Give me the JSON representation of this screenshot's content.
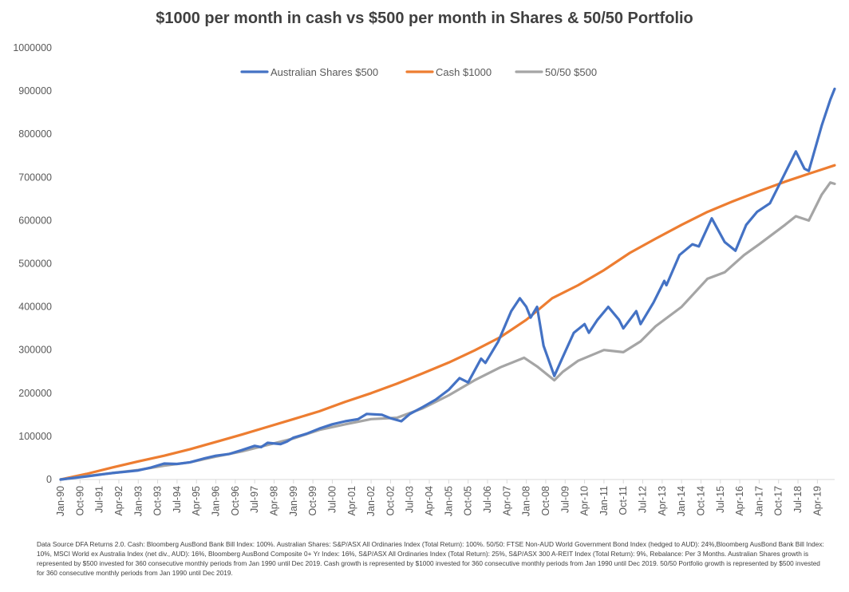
{
  "chart_data": {
    "type": "line",
    "title": "$1000 per month in cash vs $500 per month in Shares & 50/50 Portfolio",
    "xlabel": "",
    "ylabel": "",
    "ylim": [
      0,
      1000000
    ],
    "y_ticks": [
      "0",
      "100000",
      "200000",
      "300000",
      "400000",
      "500000",
      "600000",
      "700000",
      "800000",
      "900000",
      "1000000"
    ],
    "x_ticks": [
      "Jan-90",
      "Oct-90",
      "Jul-91",
      "Apr-92",
      "Jan-93",
      "Oct-93",
      "Jul-94",
      "Apr-95",
      "Jan-96",
      "Oct-96",
      "Jul-97",
      "Apr-98",
      "Jan-99",
      "Oct-99",
      "Jul-00",
      "Apr-01",
      "Jan-02",
      "Oct-02",
      "Jul-03",
      "Apr-04",
      "Jan-05",
      "Oct-05",
      "Jul-06",
      "Apr-07",
      "Jan-08",
      "Oct-08",
      "Jul-09",
      "Apr-10",
      "Jan-11",
      "Oct-11",
      "Jul-12",
      "Apr-13",
      "Jan-14",
      "Oct-14",
      "Jul-15",
      "Apr-16",
      "Jan-17",
      "Oct-17",
      "Jul-18",
      "Apr-19"
    ],
    "grid": false,
    "legend_position": "top-center",
    "series": [
      {
        "name": "Australian Shares $500",
        "color": "#4472C4",
        "points": [
          [
            "1990-01",
            0
          ],
          [
            "1990-06",
            3000
          ],
          [
            "1991-01",
            7000
          ],
          [
            "1991-07",
            11000
          ],
          [
            "1992-01",
            15000
          ],
          [
            "1992-07",
            18000
          ],
          [
            "1993-01",
            21000
          ],
          [
            "1993-07",
            28000
          ],
          [
            "1994-01",
            37000
          ],
          [
            "1994-07",
            36000
          ],
          [
            "1995-01",
            40000
          ],
          [
            "1995-07",
            48000
          ],
          [
            "1996-01",
            55000
          ],
          [
            "1996-07",
            59000
          ],
          [
            "1997-01",
            68000
          ],
          [
            "1997-07",
            78000
          ],
          [
            "1997-10",
            75000
          ],
          [
            "1998-01",
            85000
          ],
          [
            "1998-07",
            82000
          ],
          [
            "1998-10",
            88000
          ],
          [
            "1999-01",
            97000
          ],
          [
            "1999-07",
            106000
          ],
          [
            "2000-01",
            118000
          ],
          [
            "2000-07",
            128000
          ],
          [
            "2001-01",
            135000
          ],
          [
            "2001-07",
            140000
          ],
          [
            "2001-11",
            152000
          ],
          [
            "2002-06",
            150000
          ],
          [
            "2002-10",
            142000
          ],
          [
            "2003-03",
            135000
          ],
          [
            "2003-07",
            152000
          ],
          [
            "2004-01",
            168000
          ],
          [
            "2004-07",
            185000
          ],
          [
            "2005-01",
            208000
          ],
          [
            "2005-06",
            235000
          ],
          [
            "2005-10",
            225000
          ],
          [
            "2006-04",
            280000
          ],
          [
            "2006-06",
            270000
          ],
          [
            "2006-12",
            320000
          ],
          [
            "2007-06",
            390000
          ],
          [
            "2007-10",
            420000
          ],
          [
            "2008-01",
            400000
          ],
          [
            "2008-03",
            375000
          ],
          [
            "2008-06",
            400000
          ],
          [
            "2008-09",
            310000
          ],
          [
            "2009-02",
            240000
          ],
          [
            "2009-06",
            285000
          ],
          [
            "2009-11",
            340000
          ],
          [
            "2010-04",
            360000
          ],
          [
            "2010-06",
            340000
          ],
          [
            "2010-10",
            370000
          ],
          [
            "2011-03",
            400000
          ],
          [
            "2011-08",
            370000
          ],
          [
            "2011-10",
            350000
          ],
          [
            "2012-04",
            390000
          ],
          [
            "2012-06",
            360000
          ],
          [
            "2012-12",
            410000
          ],
          [
            "2013-05",
            460000
          ],
          [
            "2013-06",
            450000
          ],
          [
            "2013-12",
            520000
          ],
          [
            "2014-06",
            545000
          ],
          [
            "2014-09",
            540000
          ],
          [
            "2015-03",
            605000
          ],
          [
            "2015-09",
            550000
          ],
          [
            "2016-02",
            530000
          ],
          [
            "2016-07",
            590000
          ],
          [
            "2016-12",
            620000
          ],
          [
            "2017-06",
            640000
          ],
          [
            "2017-12",
            700000
          ],
          [
            "2018-06",
            760000
          ],
          [
            "2018-10",
            720000
          ],
          [
            "2018-12",
            715000
          ],
          [
            "2019-06",
            820000
          ],
          [
            "2019-10",
            880000
          ],
          [
            "2019-12",
            905000
          ]
        ]
      },
      {
        "name": "Cash $1000",
        "color": "#ED7D31",
        "points": [
          [
            "1990-01",
            0
          ],
          [
            "1991-01",
            13000
          ],
          [
            "1992-01",
            28000
          ],
          [
            "1993-01",
            42000
          ],
          [
            "1994-01",
            55000
          ],
          [
            "1995-01",
            70000
          ],
          [
            "1996-01",
            87000
          ],
          [
            "1997-01",
            104000
          ],
          [
            "1998-01",
            122000
          ],
          [
            "1999-01",
            140000
          ],
          [
            "2000-01",
            158000
          ],
          [
            "2001-01",
            180000
          ],
          [
            "2002-01",
            200000
          ],
          [
            "2003-01",
            222000
          ],
          [
            "2004-01",
            246000
          ],
          [
            "2005-01",
            271000
          ],
          [
            "2006-01",
            299000
          ],
          [
            "2007-01",
            330000
          ],
          [
            "2008-01",
            370000
          ],
          [
            "2009-01",
            420000
          ],
          [
            "2010-01",
            450000
          ],
          [
            "2011-01",
            485000
          ],
          [
            "2012-01",
            525000
          ],
          [
            "2013-01",
            558000
          ],
          [
            "2014-01",
            590000
          ],
          [
            "2015-01",
            620000
          ],
          [
            "2016-01",
            645000
          ],
          [
            "2017-01",
            668000
          ],
          [
            "2018-01",
            690000
          ],
          [
            "2019-01",
            710000
          ],
          [
            "2019-12",
            728000
          ]
        ]
      },
      {
        "name": "50/50 $500",
        "color": "#A5A5A5",
        "points": [
          [
            "1990-01",
            0
          ],
          [
            "1991-01",
            8000
          ],
          [
            "1992-01",
            15000
          ],
          [
            "1993-01",
            22000
          ],
          [
            "1994-01",
            32000
          ],
          [
            "1995-01",
            40000
          ],
          [
            "1996-01",
            53000
          ],
          [
            "1997-01",
            65000
          ],
          [
            "1998-01",
            80000
          ],
          [
            "1999-01",
            95000
          ],
          [
            "2000-01",
            115000
          ],
          [
            "2001-01",
            128000
          ],
          [
            "2002-01",
            140000
          ],
          [
            "2003-01",
            143000
          ],
          [
            "2004-01",
            165000
          ],
          [
            "2005-01",
            195000
          ],
          [
            "2006-01",
            230000
          ],
          [
            "2007-01",
            260000
          ],
          [
            "2007-12",
            282000
          ],
          [
            "2008-06",
            262000
          ],
          [
            "2009-02",
            230000
          ],
          [
            "2009-06",
            250000
          ],
          [
            "2010-01",
            275000
          ],
          [
            "2011-01",
            300000
          ],
          [
            "2011-10",
            295000
          ],
          [
            "2012-06",
            320000
          ],
          [
            "2013-01",
            355000
          ],
          [
            "2014-01",
            400000
          ],
          [
            "2015-01",
            465000
          ],
          [
            "2015-09",
            480000
          ],
          [
            "2016-06",
            520000
          ],
          [
            "2017-01",
            545000
          ],
          [
            "2018-01",
            590000
          ],
          [
            "2018-06",
            610000
          ],
          [
            "2018-12",
            600000
          ],
          [
            "2019-06",
            660000
          ],
          [
            "2019-10",
            688000
          ],
          [
            "2019-12",
            685000
          ]
        ]
      }
    ]
  },
  "footnote": "Data Source DFA Returns 2.0. Cash: Bloomberg AusBond Bank Bill Index: 100%. Australian Shares: S&P/ASX All Ordinaries Index (Total Return): 100%. 50/50: FTSE Non-AUD World Government Bond Index (hedged to AUD): 24%,Bloomberg AusBond Bank Bill Index: 10%, MSCI World ex Australia Index (net div., AUD): 16%, Bloomberg AusBond Composite 0+ Yr Index: 16%, S&P/ASX All Ordinaries Index (Total Return): 25%, S&P/ASX 300 A-REIT Index (Total Return): 9%, Rebalance: Per 3 Months. Australian Shares growth is represented by $500 invested for 360 consecutive monthly periods from Jan 1990 until Dec 2019. Cash growth is represented by $1000 invested for 360 consecutive monthly periods from Jan 1990 until Dec 2019. 50/50 Portfolio growth is represented by $500 invested for 360 consecutive monthly periods from Jan 1990 until Dec 2019."
}
